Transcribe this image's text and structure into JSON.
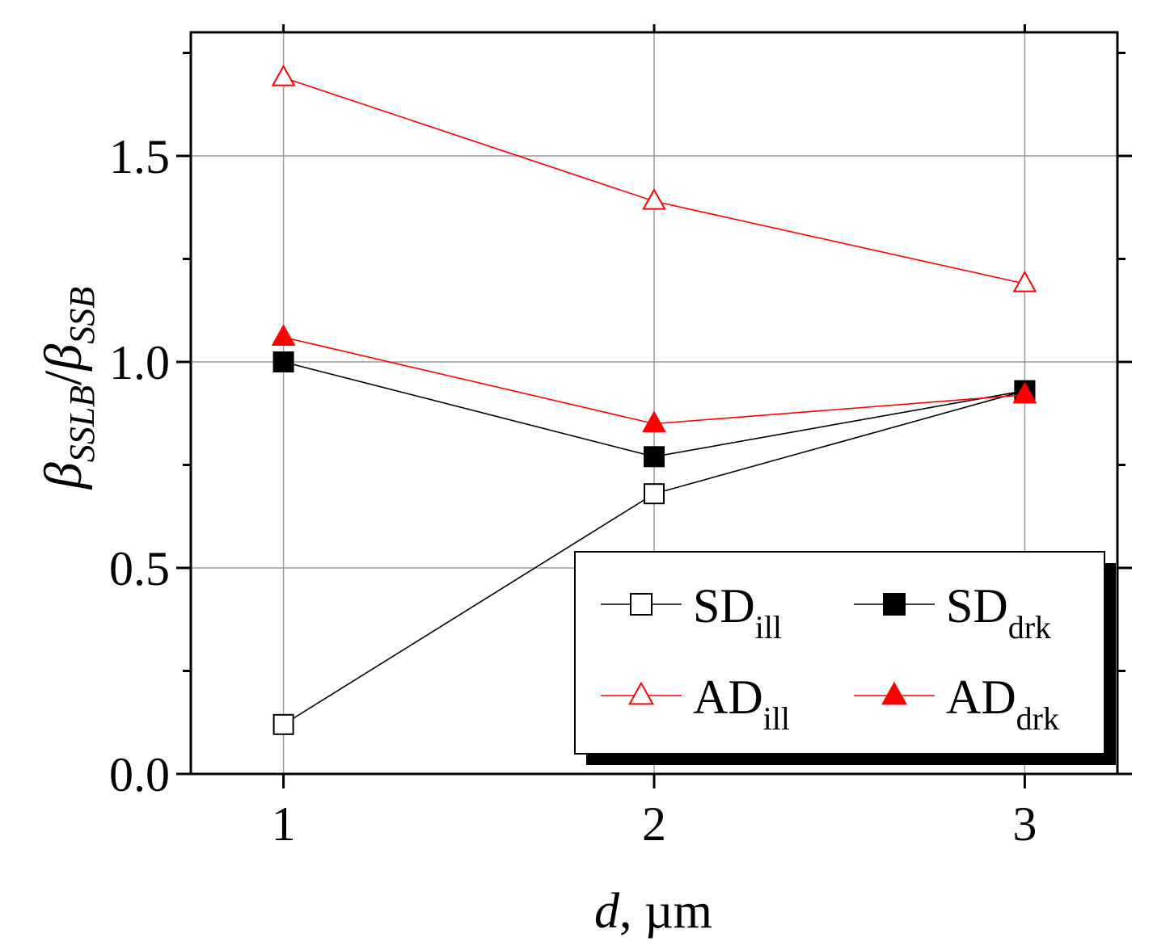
{
  "chart_data": {
    "type": "line",
    "title": "",
    "xlabel": {
      "var": "d",
      "rest": ", µm"
    },
    "ylabel": {
      "num_sym": "β",
      "num_sub": "SSLB",
      "sep": "/",
      "den_sym": "β",
      "den_sub": "SSB"
    },
    "x": [
      1,
      2,
      3
    ],
    "xlim": [
      0.75,
      3.25
    ],
    "ylim": [
      0.0,
      1.8
    ],
    "xticks": [
      1,
      2,
      3
    ],
    "yticks_labeled": [
      0.0,
      0.5,
      1.0,
      1.5
    ],
    "ytick_labels": [
      "0.0",
      "0.5",
      "1.0",
      "1.5"
    ],
    "xtick_labels": [
      "1",
      "2",
      "3"
    ],
    "grid": true,
    "legend_position": "bottom-right",
    "series": [
      {
        "name": "SD",
        "sub": "ill",
        "values": [
          0.12,
          0.68,
          0.93
        ],
        "color": "#000000",
        "marker": "square",
        "filled": false
      },
      {
        "name": "SD",
        "sub": "drk",
        "values": [
          1.0,
          0.77,
          0.93
        ],
        "color": "#000000",
        "marker": "square",
        "filled": true
      },
      {
        "name": "AD",
        "sub": "ill",
        "values": [
          1.69,
          1.39,
          1.19
        ],
        "color": "#ff0000",
        "marker": "triangle",
        "filled": false
      },
      {
        "name": "AD",
        "sub": "drk",
        "values": [
          1.06,
          0.85,
          0.92
        ],
        "color": "#ff0000",
        "marker": "triangle",
        "filled": true
      }
    ]
  }
}
